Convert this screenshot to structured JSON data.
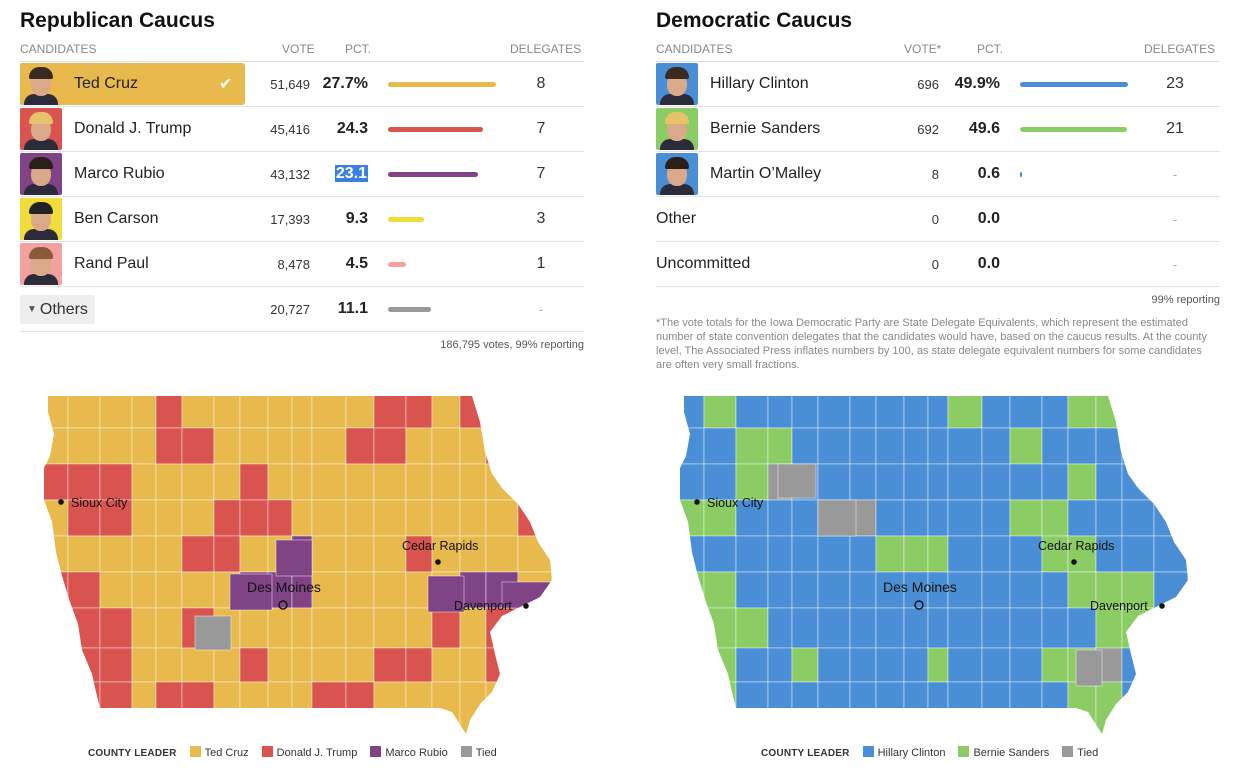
{
  "republican": {
    "title": "Republican Caucus",
    "headers": {
      "candidates": "CANDIDATES",
      "vote": "VOTE",
      "pct": "PCT.",
      "delegates": "DELEGATES"
    },
    "rows": [
      {
        "name": "Ted Cruz",
        "vote": "51,649",
        "pct": "27.7%",
        "pct_value": 27.7,
        "delegates": "8",
        "color": "#e8b94d",
        "winner": true
      },
      {
        "name": "Donald J. Trump",
        "vote": "45,416",
        "pct": "24.3",
        "pct_value": 24.3,
        "delegates": "7",
        "color": "#d9534f"
      },
      {
        "name": "Marco Rubio",
        "vote": "43,132",
        "pct": "23.1",
        "pct_value": 23.1,
        "delegates": "7",
        "color": "#7f4386",
        "selected": true
      },
      {
        "name": "Ben Carson",
        "vote": "17,393",
        "pct": "9.3",
        "pct_value": 9.3,
        "delegates": "3",
        "color": "#f0dc3a"
      },
      {
        "name": "Rand Paul",
        "vote": "8,478",
        "pct": "4.5",
        "pct_value": 4.5,
        "delegates": "1",
        "color": "#f2a0a0"
      },
      {
        "name": "Others",
        "vote": "20,727",
        "pct": "11.1",
        "pct_value": 11.1,
        "delegates": "-",
        "color": "#999999",
        "expander": true
      }
    ],
    "footer": "186,795 votes, 99% reporting",
    "cities": {
      "sioux_city": "Sioux City",
      "cedar_rapids": "Cedar Rapids",
      "des_moines": "Des Moines",
      "davenport": "Davenport"
    },
    "legend": {
      "heading": "COUNTY LEADER",
      "items": [
        {
          "label": "Ted Cruz",
          "color": "#e8b94d"
        },
        {
          "label": "Donald J. Trump",
          "color": "#d9534f"
        },
        {
          "label": "Marco Rubio",
          "color": "#7f4386"
        },
        {
          "label": "Tied",
          "color": "#999999"
        }
      ]
    }
  },
  "democratic": {
    "title": "Democratic Caucus",
    "headers": {
      "candidates": "CANDIDATES",
      "vote": "VOTE*",
      "pct": "PCT.",
      "delegates": "DELEGATES"
    },
    "rows": [
      {
        "name": "Hillary Clinton",
        "vote": "696",
        "pct": "49.9%",
        "pct_value": 49.9,
        "delegates": "23",
        "color": "#4a8fd6"
      },
      {
        "name": "Bernie Sanders",
        "vote": "692",
        "pct": "49.6",
        "pct_value": 49.6,
        "delegates": "21",
        "color": "#8ccc65"
      },
      {
        "name": "Martin O’Malley",
        "vote": "8",
        "pct": "0.6",
        "pct_value": 0.6,
        "delegates": "-",
        "color": "#4a8fd6"
      },
      {
        "name": "Other",
        "vote": "0",
        "pct": "0.0",
        "pct_value": 0,
        "delegates": "-",
        "color": "#999999",
        "no_photo": true
      },
      {
        "name": "Uncommitted",
        "vote": "0",
        "pct": "0.0",
        "pct_value": 0,
        "delegates": "-",
        "color": "#999999",
        "no_photo": true
      }
    ],
    "footer": "99% reporting",
    "note": "*The vote totals for the Iowa Democratic Party are State Delegate Equivalents, which represent the estimated number of state convention delegates that the candidates would have, based on the caucus results. At the county level, The Associated Press inflates numbers by 100, as state delegate equivalent numbers for some candidates are often very small fractions.",
    "cities": {
      "sioux_city": "Sioux City",
      "cedar_rapids": "Cedar Rapids",
      "des_moines": "Des Moines",
      "davenport": "Davenport"
    },
    "legend": {
      "heading": "COUNTY LEADER",
      "items": [
        {
          "label": "Hillary Clinton",
          "color": "#4a8fd6"
        },
        {
          "label": "Bernie Sanders",
          "color": "#8ccc65"
        },
        {
          "label": "Tied",
          "color": "#999999"
        }
      ]
    }
  }
}
